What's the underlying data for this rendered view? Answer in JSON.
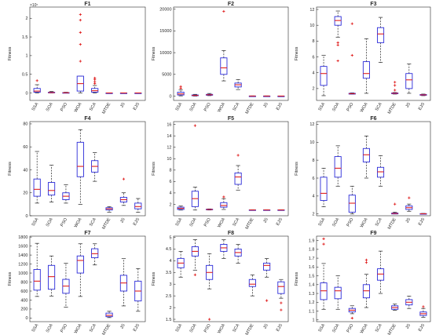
{
  "figure": {
    "algorithms": [
      "SSA",
      "SOA",
      "PSO",
      "WOA",
      "SCA",
      "MTDE",
      "JS",
      "EJS"
    ]
  },
  "chart_data": [
    {
      "type": "box",
      "title": "F1",
      "ylabel": "Fitness",
      "ylim": [
        -0.2,
        2.3
      ],
      "yticks": [
        0,
        0.5,
        1,
        1.5,
        2
      ],
      "ytick_labels": [
        "0",
        "0.5",
        "1",
        "1.5",
        "2"
      ],
      "exponent_label": "×10⁷",
      "boxes": [
        {
          "name": "SSA",
          "whisker_low": 0.0,
          "q1": 0.02,
          "median": 0.05,
          "q3": 0.12,
          "whisker_high": 0.22,
          "outliers": [
            0.33
          ]
        },
        {
          "name": "SOA",
          "whisker_low": 0.0,
          "q1": 0.005,
          "median": 0.01,
          "q3": 0.02,
          "whisker_high": 0.04,
          "outliers": []
        },
        {
          "name": "PSO",
          "whisker_low": 0.0,
          "q1": 0.003,
          "median": 0.006,
          "q3": 0.01,
          "whisker_high": 0.02,
          "outliers": []
        },
        {
          "name": "WOA",
          "whisker_low": 0.0,
          "q1": 0.05,
          "median": 0.25,
          "q3": 0.45,
          "whisker_high": 0.45,
          "outliers": [
            2.1,
            1.95,
            1.62,
            1.3,
            0.85
          ]
        },
        {
          "name": "SCA",
          "whisker_low": 0.0,
          "q1": 0.02,
          "median": 0.06,
          "q3": 0.12,
          "whisker_high": 0.2,
          "outliers": [
            0.3,
            0.36,
            0.4,
            0.25
          ]
        },
        {
          "name": "MTDE",
          "whisker_low": 0.0,
          "q1": 0.0,
          "median": 0.0,
          "q3": 0.0,
          "whisker_high": 0.0,
          "outliers": []
        },
        {
          "name": "JS",
          "whisker_low": 0.0,
          "q1": 0.0,
          "median": 0.0,
          "q3": 0.0,
          "whisker_high": 0.0,
          "outliers": []
        },
        {
          "name": "EJS",
          "whisker_low": 0.0,
          "q1": 0.0,
          "median": 0.0,
          "q3": 0.0,
          "whisker_high": 0.0,
          "outliers": []
        }
      ]
    },
    {
      "type": "box",
      "title": "F2",
      "ylabel": "Fitness",
      "ylim": [
        -1000,
        20500
      ],
      "yticks": [
        0,
        5000,
        10000,
        15000,
        20000
      ],
      "ytick_labels": [
        "0",
        "5000",
        "10000",
        "15000",
        "20000"
      ],
      "boxes": [
        {
          "name": "SSA",
          "whisker_low": 50,
          "q1": 250,
          "median": 500,
          "q3": 900,
          "whisker_high": 1400,
          "outliers": [
            1800,
            2200
          ]
        },
        {
          "name": "SOA",
          "whisker_low": 0,
          "q1": 80,
          "median": 150,
          "q3": 250,
          "whisker_high": 400,
          "outliers": []
        },
        {
          "name": "PSO",
          "whisker_low": 100,
          "q1": 200,
          "median": 300,
          "q3": 400,
          "whisker_high": 600,
          "outliers": []
        },
        {
          "name": "WOA",
          "whisker_low": 3500,
          "q1": 5000,
          "median": 6500,
          "q3": 8800,
          "whisker_high": 10500,
          "outliers": [
            19500
          ]
        },
        {
          "name": "SCA",
          "whisker_low": 1500,
          "q1": 2100,
          "median": 2600,
          "q3": 3000,
          "whisker_high": 3800,
          "outliers": []
        },
        {
          "name": "MTDE",
          "whisker_low": 0,
          "q1": 0,
          "median": 10,
          "q3": 20,
          "whisker_high": 40,
          "outliers": []
        },
        {
          "name": "JS",
          "whisker_low": 0,
          "q1": 0,
          "median": 10,
          "q3": 20,
          "whisker_high": 40,
          "outliers": []
        },
        {
          "name": "EJS",
          "whisker_low": 0,
          "q1": 0,
          "median": 5,
          "q3": 10,
          "whisker_high": 20,
          "outliers": []
        }
      ]
    },
    {
      "type": "box",
      "title": "F3",
      "ylabel": "Fitness",
      "ylim": [
        0.5,
        12.3
      ],
      "yticks": [
        2,
        4,
        6,
        8,
        10,
        12
      ],
      "ytick_labels": [
        "2",
        "4",
        "6",
        "8",
        "10",
        "12"
      ],
      "boxes": [
        {
          "name": "SSA",
          "whisker_low": 1.1,
          "q1": 2.4,
          "median": 3.9,
          "q3": 4.8,
          "whisker_high": 6.2,
          "outliers": []
        },
        {
          "name": "SOA",
          "whisker_low": 8.5,
          "q1": 10.0,
          "median": 10.6,
          "q3": 11.1,
          "whisker_high": 11.8,
          "outliers": [
            7.8,
            7.5,
            5.5
          ]
        },
        {
          "name": "PSO",
          "whisker_low": 1.3,
          "q1": 1.3,
          "median": 1.35,
          "q3": 1.4,
          "whisker_high": 1.45,
          "outliers": [
            10.2,
            6.2
          ]
        },
        {
          "name": "WOA",
          "whisker_low": 1.4,
          "q1": 3.3,
          "median": 3.9,
          "q3": 5.4,
          "whisker_high": 8.3,
          "outliers": []
        },
        {
          "name": "SCA",
          "whisker_low": 5.3,
          "q1": 7.8,
          "median": 8.9,
          "q3": 9.7,
          "whisker_high": 11.0,
          "outliers": []
        },
        {
          "name": "MTDE",
          "whisker_low": 1.3,
          "q1": 1.35,
          "median": 1.4,
          "q3": 1.45,
          "whisker_high": 1.5,
          "outliers": [
            2.4,
            2.8,
            1.8
          ]
        },
        {
          "name": "JS",
          "whisker_low": 1.4,
          "q1": 2.0,
          "median": 3.1,
          "q3": 3.9,
          "whisker_high": 5.1,
          "outliers": []
        },
        {
          "name": "EJS",
          "whisker_low": 1.1,
          "q1": 1.15,
          "median": 1.2,
          "q3": 1.25,
          "whisker_high": 1.3,
          "outliers": []
        }
      ]
    },
    {
      "type": "box",
      "title": "F4",
      "ylabel": "Fitness",
      "ylim": [
        0,
        82
      ],
      "yticks": [
        0,
        20,
        40,
        60,
        80
      ],
      "ytick_labels": [
        "0",
        "20",
        "40",
        "60",
        "80"
      ],
      "boxes": [
        {
          "name": "SSA",
          "whisker_low": 11,
          "q1": 17,
          "median": 23,
          "q3": 32,
          "whisker_high": 56,
          "outliers": []
        },
        {
          "name": "SOA",
          "whisker_low": 12,
          "q1": 18,
          "median": 22,
          "q3": 29,
          "whisker_high": 44,
          "outliers": []
        },
        {
          "name": "PSO",
          "whisker_low": 11,
          "q1": 14,
          "median": 17,
          "q3": 20,
          "whisker_high": 27,
          "outliers": []
        },
        {
          "name": "WOA",
          "whisker_low": 10,
          "q1": 34,
          "median": 43,
          "q3": 64,
          "whisker_high": 75,
          "outliers": []
        },
        {
          "name": "SCA",
          "whisker_low": 30,
          "q1": 38,
          "median": 43,
          "q3": 48,
          "whisker_high": 55,
          "outliers": []
        },
        {
          "name": "MTDE",
          "whisker_low": 3,
          "q1": 5,
          "median": 6,
          "q3": 7,
          "whisker_high": 8,
          "outliers": []
        },
        {
          "name": "JS",
          "whisker_low": 9,
          "q1": 12,
          "median": 14,
          "q3": 16,
          "whisker_high": 20,
          "outliers": [
            32
          ]
        },
        {
          "name": "EJS",
          "whisker_low": 3,
          "q1": 6,
          "median": 8,
          "q3": 11,
          "whisker_high": 15,
          "outliers": []
        }
      ]
    },
    {
      "type": "box",
      "title": "F5",
      "ylabel": "Fitness",
      "ylim": [
        0,
        16.5
      ],
      "yticks": [
        2,
        4,
        6,
        8,
        10,
        12,
        14,
        16
      ],
      "ytick_labels": [
        "2",
        "4",
        "6",
        "8",
        "10",
        "12",
        "14",
        "16"
      ],
      "boxes": [
        {
          "name": "SSA",
          "whisker_low": 1.0,
          "q1": 1.1,
          "median": 1.3,
          "q3": 1.5,
          "whisker_high": 1.7,
          "outliers": []
        },
        {
          "name": "SOA",
          "whisker_low": 1.0,
          "q1": 1.6,
          "median": 3.0,
          "q3": 4.3,
          "whisker_high": 5.0,
          "outliers": [
            15.8
          ]
        },
        {
          "name": "PSO",
          "whisker_low": 1.0,
          "q1": 1.05,
          "median": 1.1,
          "q3": 1.15,
          "whisker_high": 1.2,
          "outliers": []
        },
        {
          "name": "WOA",
          "whisker_low": 1.1,
          "q1": 1.5,
          "median": 1.8,
          "q3": 2.3,
          "whisker_high": 3.0,
          "outliers": [
            3.3
          ]
        },
        {
          "name": "SCA",
          "whisker_low": 4.5,
          "q1": 5.5,
          "median": 6.8,
          "q3": 7.5,
          "whisker_high": 8.8,
          "outliers": [
            10.6
          ]
        },
        {
          "name": "MTDE",
          "whisker_low": 1.0,
          "q1": 1.0,
          "median": 1.02,
          "q3": 1.04,
          "whisker_high": 1.06,
          "outliers": []
        },
        {
          "name": "JS",
          "whisker_low": 1.0,
          "q1": 1.0,
          "median": 1.02,
          "q3": 1.04,
          "whisker_high": 1.06,
          "outliers": []
        },
        {
          "name": "EJS",
          "whisker_low": 1.0,
          "q1": 1.0,
          "median": 1.02,
          "q3": 1.04,
          "whisker_high": 1.06,
          "outliers": []
        }
      ]
    },
    {
      "type": "box",
      "title": "F6",
      "ylabel": "Fitness",
      "ylim": [
        1.8,
        12.3
      ],
      "yticks": [
        2,
        4,
        6,
        8,
        10,
        12
      ],
      "ytick_labels": [
        "2",
        "4",
        "6",
        "8",
        "10",
        "12"
      ],
      "boxes": [
        {
          "name": "SSA",
          "whisker_low": 2.8,
          "q1": 3.5,
          "median": 4.3,
          "q3": 6.1,
          "whisker_high": 7.1,
          "outliers": []
        },
        {
          "name": "SOA",
          "whisker_low": 5.1,
          "q1": 6.1,
          "median": 7.1,
          "q3": 8.4,
          "whisker_high": 9.6,
          "outliers": []
        },
        {
          "name": "PSO",
          "whisker_low": 2.0,
          "q1": 2.2,
          "median": 3.2,
          "q3": 4.1,
          "whisker_high": 5.1,
          "outliers": []
        },
        {
          "name": "WOA",
          "whisker_low": 6.0,
          "q1": 7.8,
          "median": 8.6,
          "q3": 9.3,
          "whisker_high": 10.7,
          "outliers": []
        },
        {
          "name": "SCA",
          "whisker_low": 5.1,
          "q1": 6.1,
          "median": 6.7,
          "q3": 7.2,
          "whisker_high": 8.5,
          "outliers": []
        },
        {
          "name": "MTDE",
          "whisker_low": 2.0,
          "q1": 2.0,
          "median": 2.05,
          "q3": 2.1,
          "whisker_high": 2.2,
          "outliers": [
            3.1
          ]
        },
        {
          "name": "JS",
          "whisker_low": 2.3,
          "q1": 2.5,
          "median": 2.7,
          "q3": 2.9,
          "whisker_high": 3.1,
          "outliers": [
            3.8
          ]
        },
        {
          "name": "EJS",
          "whisker_low": 2.0,
          "q1": 2.0,
          "median": 2.02,
          "q3": 2.04,
          "whisker_high": 2.06,
          "outliers": []
        }
      ]
    },
    {
      "type": "box",
      "title": "F7",
      "ylabel": "Fitness",
      "ylim": [
        -80,
        1820
      ],
      "yticks": [
        0,
        200,
        400,
        600,
        800,
        1000,
        1200,
        1400,
        1600,
        1800
      ],
      "ytick_labels": [
        "0",
        "200",
        "400",
        "600",
        "800",
        "1000",
        "1200",
        "1400",
        "1600",
        "1800"
      ],
      "boxes": [
        {
          "name": "SSA",
          "whisker_low": 480,
          "q1": 620,
          "median": 820,
          "q3": 1080,
          "whisker_high": 1660,
          "outliers": []
        },
        {
          "name": "SOA",
          "whisker_low": 490,
          "q1": 640,
          "median": 920,
          "q3": 1170,
          "whisker_high": 1380,
          "outliers": []
        },
        {
          "name": "PSO",
          "whisker_low": 240,
          "q1": 550,
          "median": 710,
          "q3": 860,
          "whisker_high": 1220,
          "outliers": []
        },
        {
          "name": "WOA",
          "whisker_low": 480,
          "q1": 1000,
          "median": 1280,
          "q3": 1380,
          "whisker_high": 1650,
          "outliers": []
        },
        {
          "name": "SCA",
          "whisker_low": 1180,
          "q1": 1340,
          "median": 1430,
          "q3": 1540,
          "whisker_high": 1650,
          "outliers": []
        },
        {
          "name": "MTDE",
          "whisker_low": 10,
          "q1": 30,
          "median": 60,
          "q3": 110,
          "whisker_high": 150,
          "outliers": []
        },
        {
          "name": "JS",
          "whisker_low": 270,
          "q1": 600,
          "median": 780,
          "q3": 950,
          "whisker_high": 1320,
          "outliers": []
        },
        {
          "name": "EJS",
          "whisker_low": 150,
          "q1": 380,
          "median": 600,
          "q3": 820,
          "whisker_high": 1100,
          "outliers": []
        }
      ]
    },
    {
      "type": "box",
      "title": "F8",
      "ylabel": "Fitness",
      "ylim": [
        1.4,
        5.05
      ],
      "yticks": [
        1.5,
        2,
        2.5,
        3,
        3.5,
        4,
        4.5,
        5
      ],
      "ytick_labels": [
        "1.5",
        "2",
        "2.5",
        "3",
        "3.5",
        "4",
        "4.5",
        "5"
      ],
      "boxes": [
        {
          "name": "SSA",
          "whisker_low": 3.3,
          "q1": 3.7,
          "median": 3.9,
          "q3": 4.1,
          "whisker_high": 4.4,
          "outliers": []
        },
        {
          "name": "SOA",
          "whisker_low": 3.6,
          "q1": 4.2,
          "median": 4.4,
          "q3": 4.6,
          "whisker_high": 4.9,
          "outliers": [
            3.4
          ]
        },
        {
          "name": "PSO",
          "whisker_low": 2.8,
          "q1": 3.2,
          "median": 3.5,
          "q3": 3.8,
          "whisker_high": 4.3,
          "outliers": [
            1.5
          ]
        },
        {
          "name": "WOA",
          "whisker_low": 4.1,
          "q1": 4.4,
          "median": 4.55,
          "q3": 4.7,
          "whisker_high": 4.9,
          "outliers": []
        },
        {
          "name": "SCA",
          "whisker_low": 3.9,
          "q1": 4.2,
          "median": 4.35,
          "q3": 4.5,
          "whisker_high": 4.7,
          "outliers": []
        },
        {
          "name": "MTDE",
          "whisker_low": 2.5,
          "q1": 2.9,
          "median": 3.0,
          "q3": 3.2,
          "whisker_high": 3.4,
          "outliers": []
        },
        {
          "name": "JS",
          "whisker_low": 3.3,
          "q1": 3.6,
          "median": 3.8,
          "q3": 3.9,
          "whisker_high": 4.1,
          "outliers": [
            2.3
          ]
        },
        {
          "name": "EJS",
          "whisker_low": 2.4,
          "q1": 2.6,
          "median": 2.9,
          "q3": 3.1,
          "whisker_high": 3.2,
          "outliers": [
            2.2,
            1.9
          ]
        }
      ]
    },
    {
      "type": "box",
      "title": "F9",
      "ylabel": "Fitness",
      "ylim": [
        0.98,
        1.95
      ],
      "yticks": [
        1,
        1.1,
        1.2,
        1.3,
        1.4,
        1.5,
        1.6,
        1.7,
        1.8,
        1.9
      ],
      "ytick_labels": [
        "1",
        "1.1",
        "1.2",
        "1.3",
        "1.4",
        "1.5",
        "1.6",
        "1.7",
        "1.8",
        "1.9"
      ],
      "boxes": [
        {
          "name": "SSA",
          "whisker_low": 1.12,
          "q1": 1.23,
          "median": 1.33,
          "q3": 1.42,
          "whisker_high": 1.64,
          "outliers": [
            1.92,
            1.86
          ]
        },
        {
          "name": "SOA",
          "whisker_low": 1.12,
          "q1": 1.24,
          "median": 1.33,
          "q3": 1.37,
          "whisker_high": 1.5,
          "outliers": []
        },
        {
          "name": "PSO",
          "whisker_low": 1.07,
          "q1": 1.09,
          "median": 1.11,
          "q3": 1.13,
          "whisker_high": 1.16,
          "outliers": [
            1.02
          ]
        },
        {
          "name": "WOA",
          "whisker_low": 1.14,
          "q1": 1.25,
          "median": 1.33,
          "q3": 1.4,
          "whisker_high": 1.52,
          "outliers": [
            1.65,
            1.68
          ]
        },
        {
          "name": "SCA",
          "whisker_low": 1.3,
          "q1": 1.45,
          "median": 1.52,
          "q3": 1.58,
          "whisker_high": 1.78,
          "outliers": []
        },
        {
          "name": "MTDE",
          "whisker_low": 1.11,
          "q1": 1.12,
          "median": 1.14,
          "q3": 1.16,
          "whisker_high": 1.18,
          "outliers": []
        },
        {
          "name": "JS",
          "whisker_low": 1.13,
          "q1": 1.17,
          "median": 1.2,
          "q3": 1.23,
          "whisker_high": 1.27,
          "outliers": []
        },
        {
          "name": "EJS",
          "whisker_low": 1.03,
          "q1": 1.05,
          "median": 1.07,
          "q3": 1.09,
          "whisker_high": 1.13,
          "outliers": [
            1.15
          ]
        }
      ]
    }
  ]
}
